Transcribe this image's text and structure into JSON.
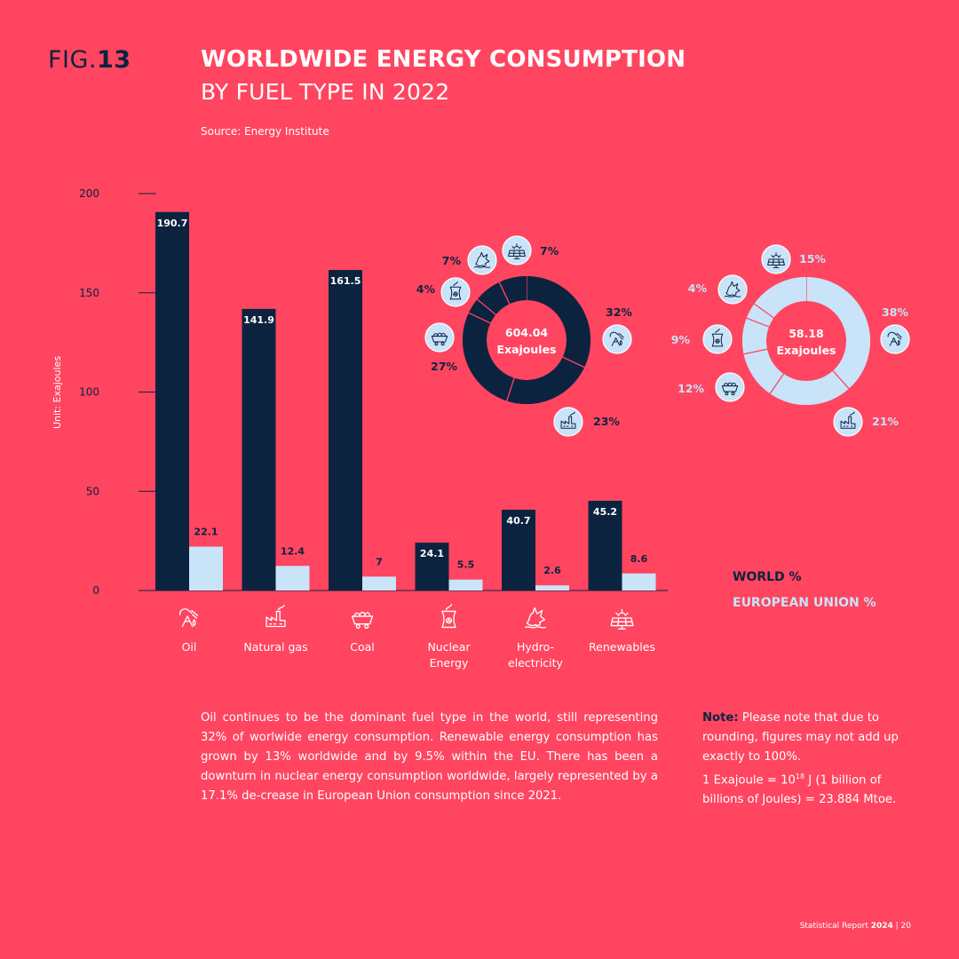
{
  "header": {
    "fig_prefix": "FIG.",
    "fig_number": "13",
    "title_line1": "WORLDWIDE ENERGY CONSUMPTION",
    "title_line2": "BY FUEL TYPE IN 2022",
    "source": "Source: Energy Institute"
  },
  "colors": {
    "background": "#ff4560",
    "world": "#0c2340",
    "eu": "#c9e3f8",
    "white": "#ffffff"
  },
  "chart_data": [
    {
      "type": "bar",
      "ylabel": "Unit: Exajoules",
      "ylim": [
        0,
        200
      ],
      "yticks": [
        0,
        50,
        100,
        150,
        200
      ],
      "categories": [
        {
          "label": "Oil",
          "icon": "oil-pump-icon"
        },
        {
          "label": "Natural gas",
          "icon": "factory-icon"
        },
        {
          "label": "Coal",
          "icon": "coal-cart-icon"
        },
        {
          "label": "Nuclear\nEnergy",
          "icon": "nuclear-plant-icon"
        },
        {
          "label": "Hydro-\nelectricity",
          "icon": "water-splash-icon"
        },
        {
          "label": "Renewables",
          "icon": "solar-panel-icon"
        }
      ],
      "series": [
        {
          "name": "WORLD %",
          "values": [
            190.7,
            141.9,
            161.5,
            24.1,
            40.7,
            45.2
          ],
          "labels": [
            "190.7",
            "141.9",
            "161.5",
            "24.1",
            "40.7",
            "45.2"
          ]
        },
        {
          "name": "EUROPEAN UNION %",
          "values": [
            22.1,
            12.4,
            7,
            5.5,
            2.6,
            8.6
          ],
          "labels": [
            "22.1",
            "12.4",
            "7",
            "5.5",
            "2.6",
            "8.6"
          ]
        }
      ]
    },
    {
      "type": "pie",
      "name": "world",
      "center_value": "604.04",
      "center_unit": "Exajoules",
      "slices": [
        {
          "category": "Oil",
          "value": 32,
          "label": "32%",
          "icon": "oil-pump-icon"
        },
        {
          "category": "Natural gas",
          "value": 23,
          "label": "23%",
          "icon": "factory-icon"
        },
        {
          "category": "Coal",
          "value": 27,
          "label": "27%",
          "icon": "coal-cart-icon"
        },
        {
          "category": "Nuclear Energy",
          "value": 4,
          "label": "4%",
          "icon": "nuclear-plant-icon"
        },
        {
          "category": "Hydroelectricity",
          "value": 7,
          "label": "7%",
          "icon": "water-splash-icon"
        },
        {
          "category": "Renewables",
          "value": 7,
          "label": "7%",
          "icon": "solar-panel-icon"
        }
      ]
    },
    {
      "type": "pie",
      "name": "eu",
      "center_value": "58.18",
      "center_unit": "Exajoules",
      "slices": [
        {
          "category": "Oil",
          "value": 38,
          "label": "38%",
          "icon": "oil-pump-icon"
        },
        {
          "category": "Natural gas",
          "value": 21,
          "label": "21%",
          "icon": "factory-icon"
        },
        {
          "category": "Coal",
          "value": 12,
          "label": "12%",
          "icon": "coal-cart-icon"
        },
        {
          "category": "Nuclear Energy",
          "value": 9,
          "label": "9%",
          "icon": "nuclear-plant-icon"
        },
        {
          "category": "Hydroelectricity",
          "value": 4,
          "label": "4%",
          "icon": "water-splash-icon"
        },
        {
          "category": "Renewables",
          "value": 15,
          "label": "15%",
          "icon": "solar-panel-icon"
        }
      ]
    }
  ],
  "legend": {
    "world": "WORLD %",
    "eu": "EUROPEAN UNION %"
  },
  "body_text": "Oil continues to be the dominant fuel type in the world, still  representing 32% of worlwide energy consumption. Renewable energy consumption has grown by 13% worldwide and by 9.5% within the EU. There has been a downturn in nuclear energy consumption worldwide, largely represented by a 17.1% de-crease in European Union consumption since 2021.",
  "note": {
    "label": "Note:",
    "text": " Please note that due to rounding, figures may not add up exactly to 100%.",
    "exa_prefix": "1 Exajoule = 10",
    "exa_exp": "18",
    "exa_suffix": " J (1 billion of billions of Joules) = 23.884 Mtoe."
  },
  "footer": {
    "report": "Statistical Report ",
    "year": "2024",
    "page": " | 20"
  }
}
